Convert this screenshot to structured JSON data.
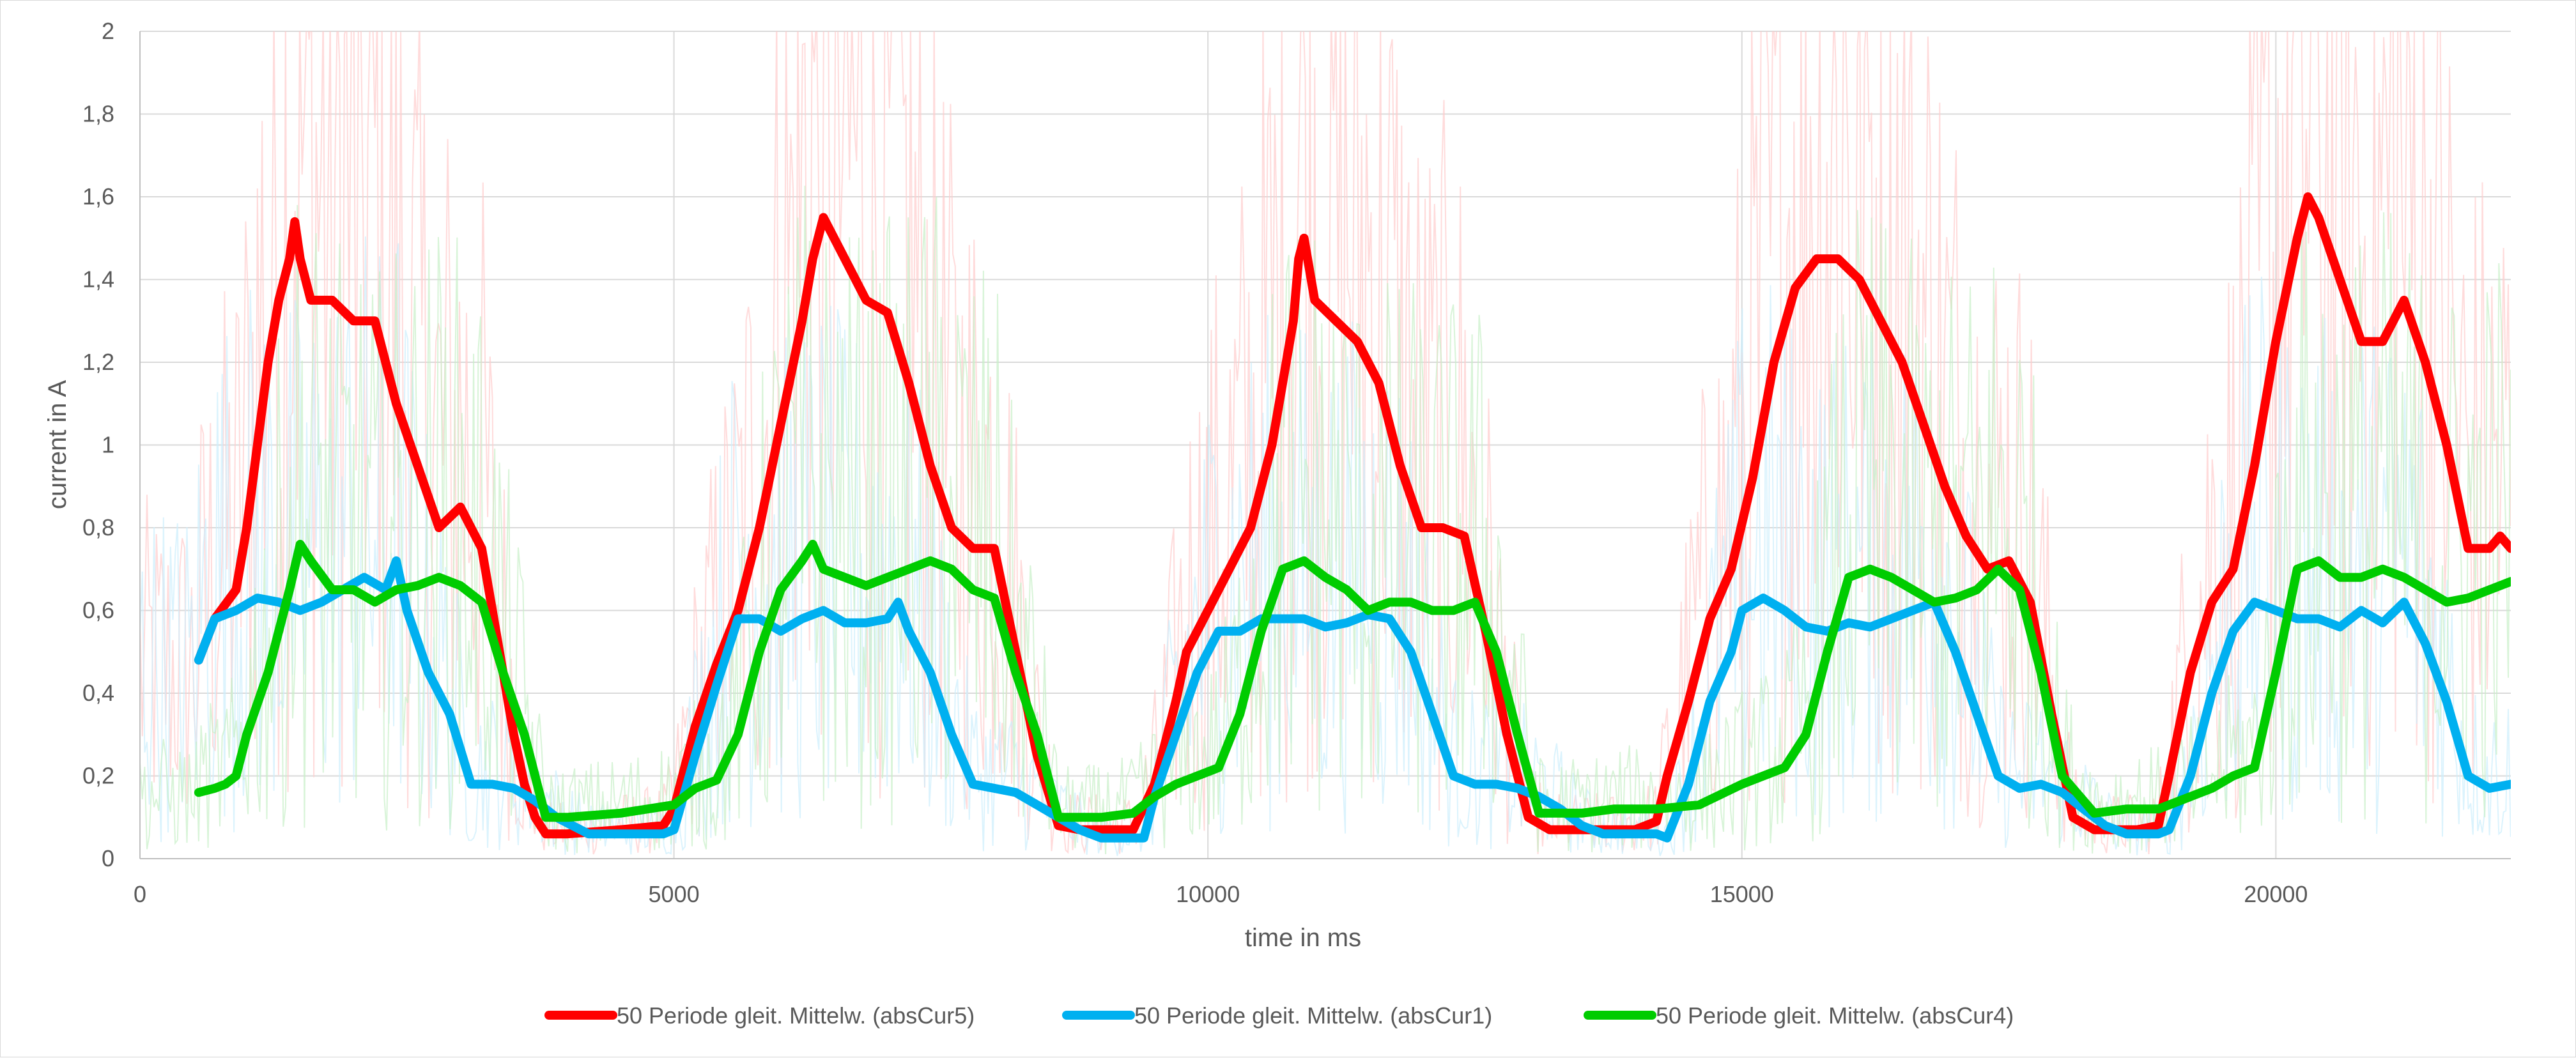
{
  "chart_data": {
    "type": "line",
    "xlabel": "time in ms",
    "ylabel": "current in A",
    "xlim": [
      0,
      22200
    ],
    "ylim": [
      0,
      2
    ],
    "x_ticks": [
      0,
      5000,
      10000,
      15000,
      20000
    ],
    "y_ticks": [
      0,
      0.2,
      0.4,
      0.6,
      0.8,
      1,
      1.2,
      1.4,
      1.6,
      1.8,
      2
    ],
    "x_tick_labels": [
      "0",
      "5000",
      "10000",
      "15000",
      "20000"
    ],
    "y_tick_labels": [
      "0",
      "0,2",
      "0,4",
      "0,6",
      "0,8",
      "1",
      "1,2",
      "1,4",
      "1,6",
      "1,8",
      "2"
    ],
    "grid": true,
    "legend_position": "bottom",
    "series": [
      {
        "name": "50 Periode gleit. Mittelw. (absCur5)",
        "color": "#ff0000",
        "x": [
          550,
          700,
          900,
          1000,
          1100,
          1200,
          1300,
          1400,
          1450,
          1500,
          1600,
          1800,
          2000,
          2200,
          2400,
          2600,
          2800,
          3000,
          3200,
          3300,
          3400,
          3500,
          3600,
          3700,
          3800,
          4000,
          4500,
          4900,
          5000,
          5200,
          5400,
          5600,
          5800,
          6000,
          6200,
          6300,
          6400,
          6600,
          6800,
          7000,
          7200,
          7400,
          7600,
          7800,
          8000,
          8200,
          8400,
          8600,
          8800,
          9000,
          9300,
          9500,
          9700,
          9800,
          10000,
          10200,
          10400,
          10600,
          10800,
          10850,
          10900,
          11000,
          11200,
          11400,
          11600,
          11800,
          12000,
          12200,
          12400,
          12600,
          12800,
          13000,
          13200,
          13400,
          13600,
          13800,
          14000,
          14200,
          14300,
          14500,
          14700,
          14900,
          15100,
          15300,
          15500,
          15700,
          15900,
          16100,
          16300,
          16500,
          16700,
          16900,
          17100,
          17300,
          17500,
          17700,
          17900,
          18100,
          18300,
          18500,
          18700,
          18900,
          19000,
          19200,
          19400,
          19600,
          19800,
          20000,
          20200,
          20300,
          20400,
          20600,
          20800,
          21000,
          21200,
          21400,
          21600,
          21800,
          22000,
          22100,
          22200
        ],
        "y": [
          0.48,
          0.58,
          0.65,
          0.8,
          1.0,
          1.2,
          1.35,
          1.45,
          1.54,
          1.45,
          1.35,
          1.35,
          1.3,
          1.3,
          1.1,
          0.95,
          0.8,
          0.85,
          0.75,
          0.6,
          0.45,
          0.3,
          0.18,
          0.1,
          0.06,
          0.06,
          0.07,
          0.08,
          0.12,
          0.32,
          0.47,
          0.6,
          0.8,
          1.05,
          1.3,
          1.45,
          1.55,
          1.45,
          1.35,
          1.32,
          1.15,
          0.95,
          0.8,
          0.75,
          0.75,
          0.5,
          0.25,
          0.08,
          0.07,
          0.07,
          0.07,
          0.18,
          0.38,
          0.5,
          0.6,
          0.7,
          0.8,
          1.0,
          1.3,
          1.45,
          1.5,
          1.35,
          1.3,
          1.25,
          1.15,
          0.95,
          0.8,
          0.8,
          0.78,
          0.55,
          0.3,
          0.1,
          0.07,
          0.07,
          0.07,
          0.07,
          0.07,
          0.09,
          0.2,
          0.38,
          0.58,
          0.7,
          0.92,
          1.2,
          1.38,
          1.45,
          1.45,
          1.4,
          1.3,
          1.2,
          1.05,
          0.9,
          0.78,
          0.7,
          0.72,
          0.62,
          0.35,
          0.1,
          0.07,
          0.07,
          0.07,
          0.08,
          0.2,
          0.45,
          0.62,
          0.7,
          0.95,
          1.25,
          1.5,
          1.6,
          1.55,
          1.4,
          1.25,
          1.25,
          1.35,
          1.2,
          1.0,
          0.75,
          0.75,
          0.78,
          0.75
        ]
      },
      {
        "name": "50 Periode gleit. Mittelw. (absCur1)",
        "color": "#00b0f0",
        "x": [
          550,
          700,
          900,
          1100,
          1300,
          1500,
          1700,
          1900,
          2100,
          2300,
          2400,
          2500,
          2700,
          2900,
          3100,
          3300,
          3500,
          3700,
          3900,
          4200,
          4600,
          4900,
          5000,
          5200,
          5400,
          5600,
          5800,
          6000,
          6200,
          6400,
          6600,
          6800,
          7000,
          7100,
          7200,
          7400,
          7600,
          7800,
          8000,
          8200,
          8400,
          8600,
          8800,
          9000,
          9300,
          9400,
          9500,
          9700,
          9900,
          10100,
          10300,
          10500,
          10700,
          10900,
          11100,
          11300,
          11500,
          11700,
          11900,
          12100,
          12300,
          12500,
          12700,
          12900,
          13100,
          13300,
          13500,
          13700,
          13900,
          14100,
          14200,
          14300,
          14500,
          14700,
          14900,
          15000,
          15200,
          15400,
          15600,
          15800,
          16000,
          16200,
          16400,
          16600,
          16800,
          17000,
          17200,
          17400,
          17600,
          17800,
          18000,
          18200,
          18400,
          18600,
          18800,
          18900,
          19000,
          19200,
          19400,
          19600,
          19800,
          20000,
          20200,
          20400,
          20600,
          20800,
          21000,
          21200,
          21400,
          21600,
          21800,
          22000,
          22200
        ],
        "y": [
          0.48,
          0.58,
          0.6,
          0.63,
          0.62,
          0.6,
          0.62,
          0.65,
          0.68,
          0.65,
          0.72,
          0.6,
          0.45,
          0.35,
          0.18,
          0.18,
          0.17,
          0.14,
          0.1,
          0.06,
          0.06,
          0.06,
          0.07,
          0.25,
          0.42,
          0.58,
          0.58,
          0.55,
          0.58,
          0.6,
          0.57,
          0.57,
          0.58,
          0.62,
          0.55,
          0.45,
          0.3,
          0.18,
          0.17,
          0.16,
          0.13,
          0.1,
          0.07,
          0.05,
          0.05,
          0.05,
          0.15,
          0.3,
          0.45,
          0.55,
          0.55,
          0.58,
          0.58,
          0.58,
          0.56,
          0.57,
          0.59,
          0.58,
          0.5,
          0.35,
          0.2,
          0.18,
          0.18,
          0.17,
          0.15,
          0.12,
          0.08,
          0.06,
          0.06,
          0.06,
          0.06,
          0.05,
          0.18,
          0.38,
          0.5,
          0.6,
          0.63,
          0.6,
          0.56,
          0.55,
          0.57,
          0.56,
          0.58,
          0.6,
          0.62,
          0.5,
          0.35,
          0.2,
          0.17,
          0.18,
          0.16,
          0.12,
          0.08,
          0.06,
          0.06,
          0.06,
          0.07,
          0.2,
          0.4,
          0.55,
          0.62,
          0.6,
          0.58,
          0.58,
          0.56,
          0.6,
          0.57,
          0.62,
          0.52,
          0.38,
          0.2,
          0.17,
          0.18
        ]
      },
      {
        "name": "50 Periode gleit. Mittelw. (absCur4)",
        "color": "#00cc00",
        "x": [
          550,
          700,
          800,
          900,
          1000,
          1200,
          1400,
          1500,
          1600,
          1800,
          2000,
          2200,
          2400,
          2600,
          2800,
          3000,
          3200,
          3400,
          3600,
          3800,
          4000,
          4500,
          5000,
          5200,
          5400,
          5600,
          5800,
          6000,
          6200,
          6300,
          6400,
          6600,
          6800,
          7000,
          7200,
          7400,
          7600,
          7800,
          8000,
          8200,
          8400,
          8600,
          8800,
          9000,
          9300,
          9500,
          9700,
          9900,
          10100,
          10300,
          10500,
          10700,
          10900,
          11100,
          11300,
          11500,
          11700,
          11900,
          12100,
          12300,
          12500,
          12700,
          12900,
          13100,
          13300,
          13500,
          13800,
          14200,
          14600,
          15000,
          15400,
          15600,
          15800,
          16000,
          16200,
          16400,
          16600,
          16800,
          17000,
          17200,
          17400,
          17600,
          17800,
          18000,
          18300,
          18600,
          18900,
          19200,
          19400,
          19600,
          19800,
          20000,
          20200,
          20400,
          20600,
          20800,
          21000,
          21200,
          21400,
          21600,
          21800,
          22000,
          22200
        ],
        "y": [
          0.16,
          0.17,
          0.18,
          0.2,
          0.3,
          0.45,
          0.65,
          0.76,
          0.72,
          0.65,
          0.65,
          0.62,
          0.65,
          0.66,
          0.68,
          0.66,
          0.62,
          0.45,
          0.3,
          0.1,
          0.1,
          0.11,
          0.13,
          0.17,
          0.19,
          0.3,
          0.5,
          0.65,
          0.72,
          0.76,
          0.7,
          0.68,
          0.66,
          0.68,
          0.7,
          0.72,
          0.7,
          0.65,
          0.63,
          0.45,
          0.3,
          0.1,
          0.1,
          0.1,
          0.11,
          0.15,
          0.18,
          0.2,
          0.22,
          0.35,
          0.55,
          0.7,
          0.72,
          0.68,
          0.65,
          0.6,
          0.62,
          0.62,
          0.6,
          0.6,
          0.62,
          0.5,
          0.3,
          0.11,
          0.11,
          0.11,
          0.12,
          0.12,
          0.13,
          0.18,
          0.22,
          0.3,
          0.5,
          0.68,
          0.7,
          0.68,
          0.65,
          0.62,
          0.63,
          0.65,
          0.7,
          0.65,
          0.45,
          0.2,
          0.11,
          0.12,
          0.12,
          0.15,
          0.17,
          0.2,
          0.22,
          0.45,
          0.7,
          0.72,
          0.68,
          0.68,
          0.7,
          0.68,
          0.65,
          0.62,
          0.63,
          0.65,
          0.67
        ]
      }
    ]
  }
}
